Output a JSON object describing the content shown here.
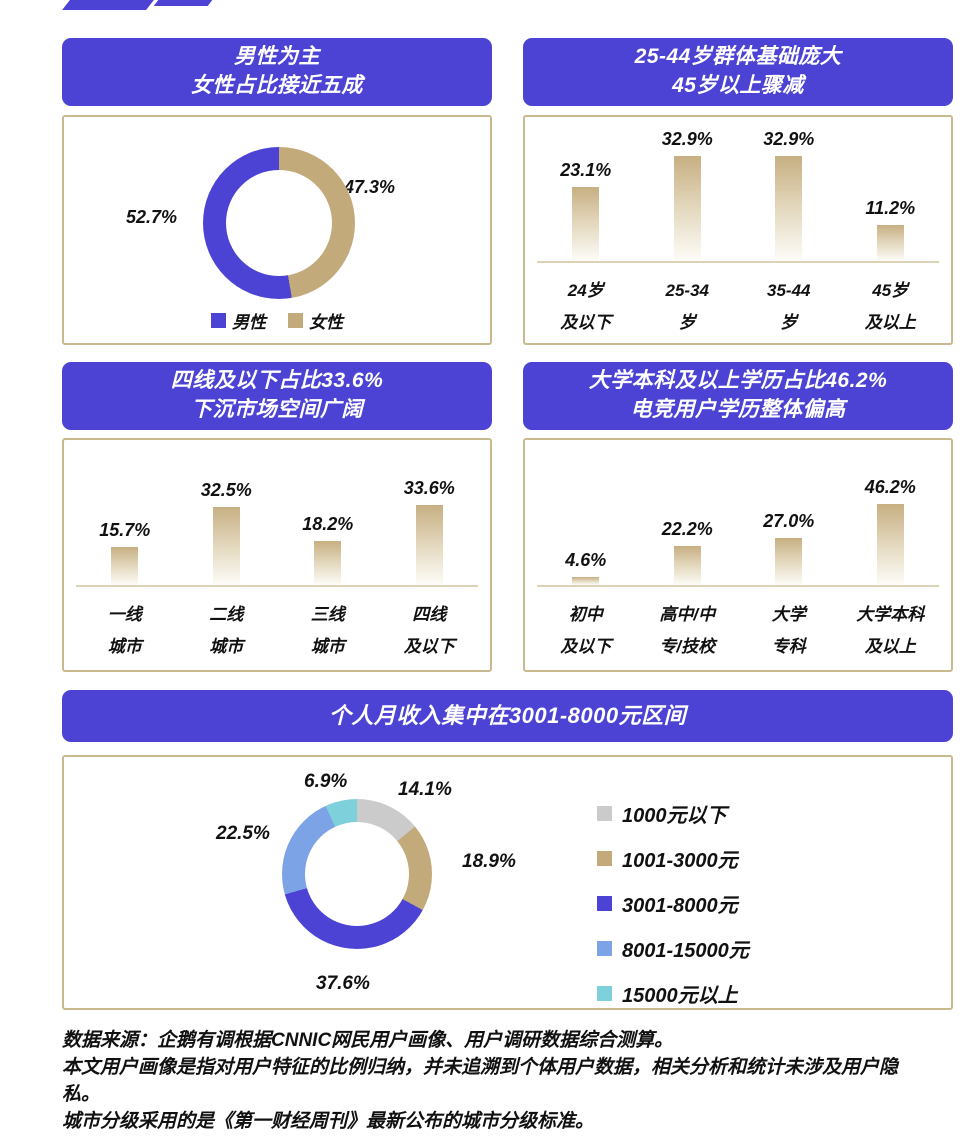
{
  "colors": {
    "purple": "#4C43D4",
    "tan": "#C2AA7B",
    "gray": "#CBCBCB",
    "blue": "#7CA3E6",
    "teal": "#7ED0DB",
    "panel_border": "#C9B98F",
    "header_text": "#FFFFFF"
  },
  "panels": {
    "gender": {
      "title1": "男性为主",
      "title2": "女性占比接近五成",
      "label_male": "52.7%",
      "label_female": "47.3%",
      "legend": [
        {
          "label": "男性",
          "color": "#4C43D4"
        },
        {
          "label": "女性",
          "color": "#C2AA7B"
        }
      ],
      "donut_segments": [
        {
          "color": "#C2AA7B",
          "value": 47.3
        },
        {
          "color": "#4C43D4",
          "value": 52.7
        }
      ]
    },
    "age": {
      "title1": "25-44岁群体基础庞大",
      "title2": "45岁以上骤减",
      "bars": [
        {
          "pct": "23.1%",
          "cat1": "24岁",
          "cat2": "及以下"
        },
        {
          "pct": "32.9%",
          "cat1": "25-34",
          "cat2": "岁"
        },
        {
          "pct": "32.9%",
          "cat1": "35-44",
          "cat2": "岁"
        },
        {
          "pct": "11.2%",
          "cat1": "45岁",
          "cat2": "及以上"
        }
      ]
    },
    "city": {
      "title1": "四线及以下占比33.6%",
      "title2": "下沉市场空间广阔",
      "bars": [
        {
          "pct": "15.7%",
          "cat1": "一线",
          "cat2": "城市"
        },
        {
          "pct": "32.5%",
          "cat1": "二线",
          "cat2": "城市"
        },
        {
          "pct": "18.2%",
          "cat1": "三线",
          "cat2": "城市"
        },
        {
          "pct": "33.6%",
          "cat1": "四线",
          "cat2": "及以下"
        }
      ]
    },
    "education": {
      "title1": "大学本科及以上学历占比46.2%",
      "title2": "电竞用户学历整体偏高",
      "bars": [
        {
          "pct": "4.6%",
          "cat1": "初中",
          "cat2": "及以下"
        },
        {
          "pct": "22.2%",
          "cat1": "高中/中",
          "cat2": "专/技校"
        },
        {
          "pct": "27.0%",
          "cat1": "大学",
          "cat2": "专科"
        },
        {
          "pct": "46.2%",
          "cat1": "大学本科",
          "cat2": "及以上"
        }
      ]
    },
    "income": {
      "title": "个人月收入集中在3001-8000元区间",
      "slice_labels": {
        "under1000": "14.1%",
        "s1001_3000": "18.9%",
        "s3001_8000": "37.6%",
        "s8001_15000": "22.5%",
        "over15000": "6.9%"
      },
      "legend": [
        {
          "label": "1000元以下",
          "color": "#CBCBCB"
        },
        {
          "label": "1001-3000元",
          "color": "#C2AA7B"
        },
        {
          "label": "3001-8000元",
          "color": "#4C43D4"
        },
        {
          "label": "8001-15000元",
          "color": "#7CA3E6"
        },
        {
          "label": "15000元以上",
          "color": "#7ED0DB"
        }
      ],
      "donut_segments": [
        {
          "color": "#CBCBCB",
          "value": 14.1
        },
        {
          "color": "#C2AA7B",
          "value": 18.9
        },
        {
          "color": "#4C43D4",
          "value": 37.6
        },
        {
          "color": "#7CA3E6",
          "value": 22.5
        },
        {
          "color": "#7ED0DB",
          "value": 6.9
        }
      ]
    }
  },
  "footer": {
    "line1": "数据来源：企鹅有调根据CNNIC网民用户画像、用户调研数据综合测算。",
    "line2": "本文用户画像是指对用户特征的比例归纳，并未追溯到个体用户数据，相关分析和统计未涉及用户隐私。",
    "line3": "城市分级采用的是《第一财经周刊》最新公布的城市分级标准。"
  },
  "chart_data": [
    {
      "type": "pie",
      "title": "男性为主 女性占比接近五成",
      "labels": [
        "男性",
        "女性"
      ],
      "values": [
        52.7,
        47.3
      ],
      "colors": [
        "#4C43D4",
        "#C2AA7B"
      ],
      "unit": "%",
      "legend_position": "bottom"
    },
    {
      "type": "bar",
      "title": "25-44岁群体基础庞大 45岁以上骤减",
      "categories": [
        "24岁及以下",
        "25-34岁",
        "35-44岁",
        "45岁及以上"
      ],
      "values": [
        23.1,
        32.9,
        32.9,
        11.2
      ],
      "unit": "%",
      "ylim": [
        0,
        35
      ],
      "grid": false
    },
    {
      "type": "bar",
      "title": "四线及以下占比33.6% 下沉市场空间广阔",
      "categories": [
        "一线城市",
        "二线城市",
        "三线城市",
        "四线及以下"
      ],
      "values": [
        15.7,
        32.5,
        18.2,
        33.6
      ],
      "unit": "%",
      "ylim": [
        0,
        35
      ],
      "grid": false
    },
    {
      "type": "bar",
      "title": "大学本科及以上学历占比46.2% 电竞用户学历整体偏高",
      "categories": [
        "初中及以下",
        "高中/中专/技校",
        "大学专科",
        "大学本科及以上"
      ],
      "values": [
        4.6,
        22.2,
        27.0,
        46.2
      ],
      "unit": "%",
      "ylim": [
        0,
        50
      ],
      "grid": false
    },
    {
      "type": "pie",
      "title": "个人月收入集中在3001-8000元区间",
      "labels": [
        "1000元以下",
        "1001-3000元",
        "3001-8000元",
        "8001-15000元",
        "15000元以上"
      ],
      "values": [
        14.1,
        18.9,
        37.6,
        22.5,
        6.9
      ],
      "colors": [
        "#CBCBCB",
        "#C2AA7B",
        "#4C43D4",
        "#7CA3E6",
        "#7ED0DB"
      ],
      "unit": "%",
      "legend_position": "right"
    }
  ]
}
